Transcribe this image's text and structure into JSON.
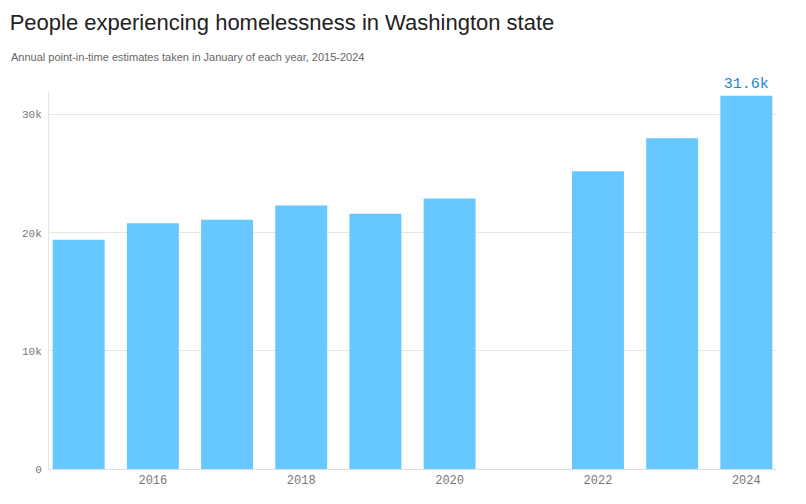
{
  "chart_data": {
    "type": "bar",
    "title": "People experiencing homelessness in Washington state",
    "subtitle": "Annual point-in-time estimates taken in January of each year, 2015-2024",
    "x": [
      2015,
      2016,
      2017,
      2018,
      2019,
      2020,
      2021,
      2022,
      2023,
      2024
    ],
    "values": [
      19400,
      20800,
      21100,
      22300,
      21600,
      22900,
      null,
      25200,
      28000,
      31600
    ],
    "value_labels": [
      null,
      null,
      null,
      null,
      null,
      null,
      null,
      null,
      null,
      "31.6k"
    ],
    "data_labels": true,
    "color": "#66c8ff",
    "xlim": [
      2014.6,
      2024.4
    ],
    "xticks": [
      2016,
      2018,
      2020,
      2022,
      2024
    ],
    "ylim": [
      0,
      32000
    ],
    "yticks": [
      0,
      {
        "value": 10000,
        "label": "10k"
      },
      {
        "value": 20000,
        "label": "20k"
      },
      {
        "value": 30000,
        "label": "30k"
      }
    ],
    "grid": true
  }
}
